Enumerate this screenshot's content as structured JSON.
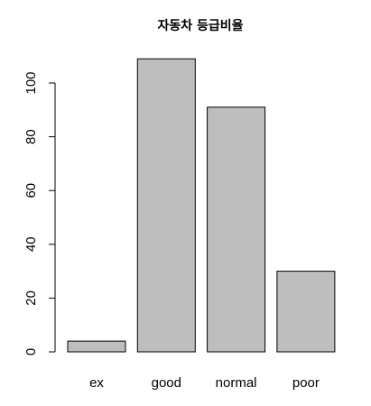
{
  "chart_data": {
    "type": "bar",
    "title": "자동차 등급비율",
    "xlabel": "",
    "ylabel": "",
    "categories": [
      "ex",
      "good",
      "normal",
      "poor"
    ],
    "values": [
      4,
      109,
      91,
      30
    ],
    "ylim": [
      0,
      110
    ],
    "yticks": [
      0,
      20,
      40,
      60,
      80,
      100
    ],
    "bar_color": "#bebebe",
    "grid": false,
    "legend": "none"
  }
}
